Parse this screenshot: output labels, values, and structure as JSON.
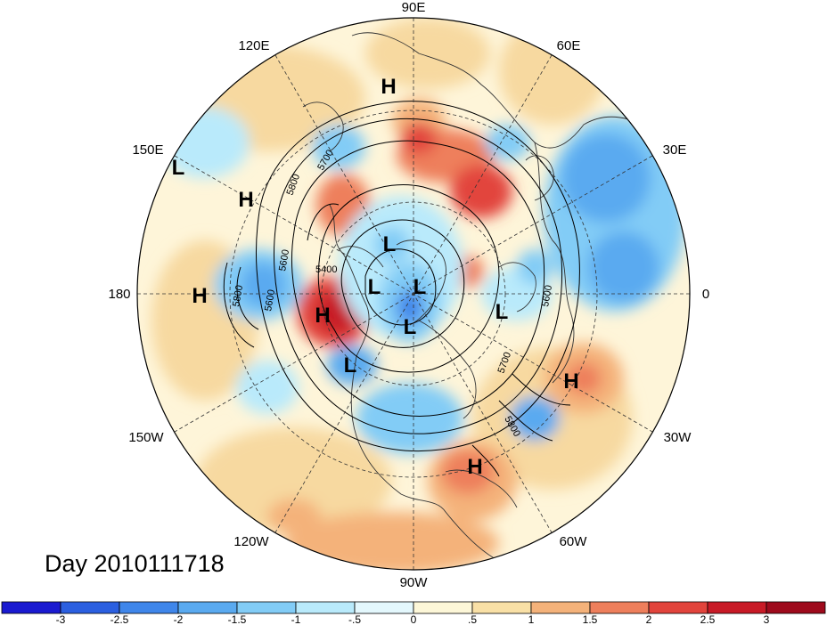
{
  "title": "Day 2010111718",
  "longitude_labels": [
    "90E",
    "120E",
    "60E",
    "150E",
    "30E",
    "180",
    "0",
    "150W",
    "30W",
    "120W",
    "60W",
    "90W"
  ],
  "highs_lows": [
    "H",
    "L",
    "H",
    "H",
    "L",
    "L",
    "L",
    "H",
    "L",
    "L",
    "L",
    "H",
    "H"
  ],
  "contour_labels": [
    "5700",
    "5800",
    "5600",
    "5400",
    "5800",
    "5600",
    "5600",
    "5700",
    "5800"
  ],
  "colorbar": {
    "ticks": [
      "-3",
      "-2.5",
      "-2",
      "-1.5",
      "-1",
      "-.5",
      "0",
      ".5",
      "1",
      "1.5",
      "2",
      "2.5",
      "3"
    ],
    "colors": [
      "#1a1ad0",
      "#2b5fe0",
      "#3f86ea",
      "#5aaaf0",
      "#82ccf6",
      "#b9eafb",
      "#e4f8fd",
      "#fdf7d8",
      "#f9e0a6",
      "#f4b27a",
      "#ee7f5c",
      "#e2443c",
      "#c81a26",
      "#9e0a1c"
    ]
  },
  "field_colors": {
    "background": "#fef5d9",
    "warm": "#f7d9a0",
    "red": "#e85c4a",
    "deep_red": "#c81a26",
    "blue": "#5aaaf0",
    "light_blue": "#b9eafb",
    "dark_blue": "#3f86ea"
  }
}
